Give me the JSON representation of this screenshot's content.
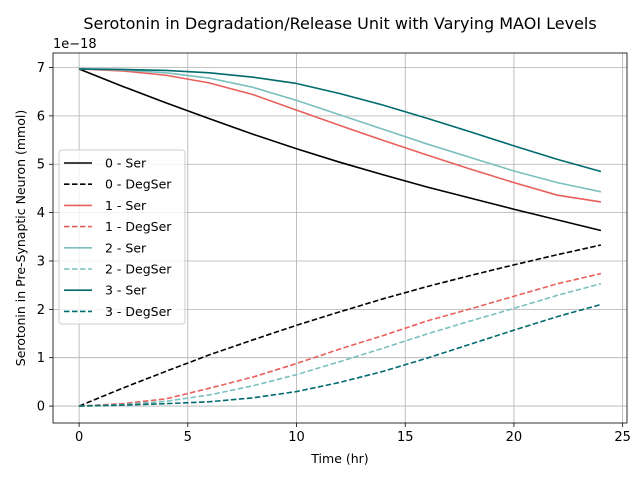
{
  "chart_data": {
    "type": "line",
    "title": "Serotonin in Degradation/Release Unit with Varying MAOI Levels",
    "xlabel": "Time (hr)",
    "ylabel": "Serotonin in Pre-Synaptic Neuron (mmol)",
    "y_offset_text": "1e−18",
    "xlim": [
      -1.2,
      25.2
    ],
    "ylim": [
      -0.35,
      7.3
    ],
    "x_ticks": [
      0,
      5,
      10,
      15,
      20,
      25
    ],
    "x_tick_labels": [
      "0",
      "5",
      "10",
      "15",
      "20",
      "25"
    ],
    "y_ticks": [
      0,
      1,
      2,
      3,
      4,
      5,
      6,
      7
    ],
    "y_tick_labels": [
      "0",
      "1",
      "2",
      "3",
      "4",
      "5",
      "6",
      "7"
    ],
    "grid": true,
    "legend_position": "center-left",
    "x": [
      0,
      2,
      4,
      6,
      8,
      10,
      12,
      14,
      16,
      18,
      20,
      22,
      24
    ],
    "series": [
      {
        "name": "0 - Ser",
        "color": "#000000",
        "dash": "solid",
        "values": [
          6.97,
          6.61,
          6.27,
          5.94,
          5.62,
          5.32,
          5.04,
          4.78,
          4.53,
          4.3,
          4.07,
          3.85,
          3.63
        ]
      },
      {
        "name": "0 - DegSer",
        "color": "#000000",
        "dash": "dashed",
        "values": [
          0.0,
          0.37,
          0.72,
          1.06,
          1.37,
          1.67,
          1.95,
          2.22,
          2.47,
          2.7,
          2.92,
          3.13,
          3.33
        ]
      },
      {
        "name": "1 - Ser",
        "color": "#e8605b",
        "dash": "solid",
        "values": [
          6.97,
          6.93,
          6.84,
          6.68,
          6.44,
          6.12,
          5.8,
          5.49,
          5.19,
          4.9,
          4.62,
          4.36,
          4.22
        ]
      },
      {
        "name": "1 - DegSer",
        "color": "#e8605b",
        "dash": "dashed",
        "values": [
          0.0,
          0.05,
          0.15,
          0.37,
          0.6,
          0.88,
          1.18,
          1.46,
          1.76,
          2.01,
          2.27,
          2.53,
          2.74
        ]
      },
      {
        "name": "2 - Ser",
        "color": "#7bbfbf",
        "dash": "solid",
        "values": [
          6.97,
          6.95,
          6.89,
          6.78,
          6.59,
          6.32,
          6.02,
          5.72,
          5.42,
          5.14,
          4.86,
          4.62,
          4.43
        ]
      },
      {
        "name": "2 - DegSer",
        "color": "#7bbfbf",
        "dash": "dashed",
        "values": [
          0.0,
          0.03,
          0.1,
          0.23,
          0.42,
          0.65,
          0.92,
          1.2,
          1.49,
          1.76,
          2.02,
          2.29,
          2.53
        ]
      },
      {
        "name": "3 - Ser",
        "color": "#006b6e",
        "dash": "solid",
        "values": [
          6.97,
          6.96,
          6.94,
          6.89,
          6.8,
          6.67,
          6.46,
          6.22,
          5.95,
          5.67,
          5.38,
          5.1,
          4.85
        ]
      },
      {
        "name": "3 - DegSer",
        "color": "#006b6e",
        "dash": "dashed",
        "values": [
          0.0,
          0.02,
          0.05,
          0.09,
          0.17,
          0.3,
          0.49,
          0.72,
          0.99,
          1.28,
          1.57,
          1.85,
          2.1
        ]
      }
    ]
  }
}
